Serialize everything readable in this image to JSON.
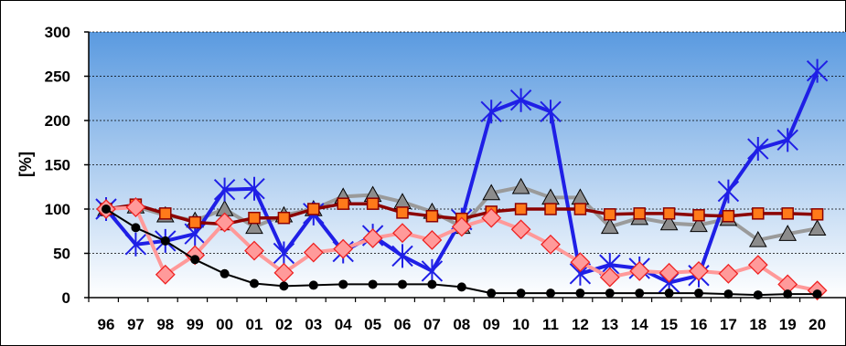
{
  "chart_data": {
    "type": "line",
    "ylabel": "[%]",
    "xlabel": "",
    "ylim": [
      0,
      300
    ],
    "yticks": [
      "0",
      "50",
      "100",
      "150",
      "200",
      "250",
      "300"
    ],
    "categories": [
      "96",
      "97",
      "98",
      "99",
      "00",
      "01",
      "02",
      "03",
      "04",
      "05",
      "06",
      "07",
      "08",
      "09",
      "10",
      "11",
      "12",
      "13",
      "14",
      "15",
      "16",
      "17",
      "18",
      "19",
      "20"
    ],
    "grid": true,
    "legend": "none",
    "colors": {
      "blue_cross": "#1f1fe6",
      "red_square": "#8b0000",
      "orange_square_fill": "#ff7a1a",
      "gray_triangle_line": "#9a9a9a",
      "gray_triangle_fill": "#8c8c8c",
      "pink_diamond_line": "#ff9999",
      "pink_diamond_fill": "#ff9a9a",
      "pink_diamond_edge": "#ee2222",
      "black_dot": "#000000",
      "plot_top": "#5a9ae0",
      "plot_bottom": "#ffffff"
    },
    "series": [
      {
        "marker": "cross",
        "values": [
          100,
          60,
          64,
          72,
          122,
          123,
          50,
          95,
          52,
          70,
          47,
          30,
          88,
          210,
          223,
          210,
          27,
          37,
          33,
          17,
          25,
          120,
          168,
          178,
          256
        ]
      },
      {
        "marker": "triangle",
        "values": [
          100,
          103,
          93,
          87,
          100,
          80,
          93,
          100,
          114,
          116,
          108,
          97,
          80,
          118,
          125,
          113,
          113,
          80,
          90,
          84,
          82,
          89,
          65,
          72,
          78
        ]
      },
      {
        "marker": "square",
        "values": [
          100,
          105,
          95,
          85,
          83,
          90,
          90,
          100,
          106,
          106,
          96,
          92,
          89,
          97,
          100,
          100,
          100,
          94,
          95,
          95,
          93,
          92,
          95,
          95,
          94
        ]
      },
      {
        "marker": "diamond",
        "values": [
          100,
          102,
          26,
          48,
          85,
          53,
          28,
          51,
          55,
          67,
          73,
          65,
          80,
          90,
          77,
          60,
          40,
          23,
          30,
          28,
          30,
          27,
          37,
          15,
          8
        ]
      },
      {
        "marker": "dot",
        "values": [
          100,
          79,
          64,
          43,
          27,
          16,
          13,
          14,
          15,
          15,
          15,
          15,
          12,
          5,
          5,
          5,
          5,
          5,
          5,
          5,
          5,
          4,
          3,
          4,
          4
        ]
      }
    ]
  }
}
